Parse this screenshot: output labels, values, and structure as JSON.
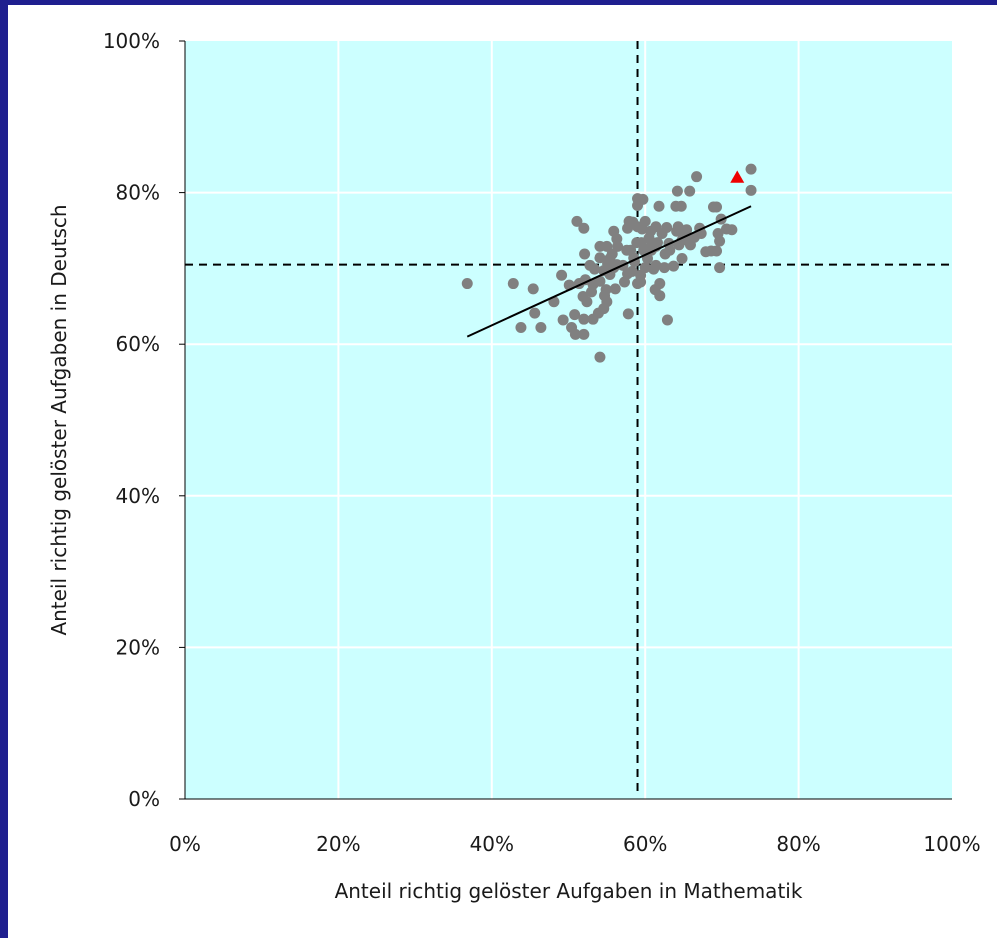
{
  "colors": {
    "plot_bg": "#ccffff",
    "grid": "#ffffff",
    "point": "#808080",
    "highlight": "#ee0000",
    "line": "#000000",
    "frame_border": "#1f1f8f"
  },
  "chart_data": {
    "type": "scatter",
    "title": "",
    "xlabel": "Anteil richtig gelöster Aufgaben in Mathematik",
    "ylabel": "Anteil richtig gelöster Aufgaben in Deutsch",
    "xlim": [
      0,
      100
    ],
    "ylim": [
      0,
      100
    ],
    "x_unit": "%",
    "y_unit": "%",
    "grid": true,
    "x_ticks": [
      "0%",
      "20%",
      "40%",
      "60%",
      "80%",
      "100%"
    ],
    "y_ticks": [
      "0%",
      "20%",
      "40%",
      "60%",
      "80%",
      "100%"
    ],
    "reference_lines": {
      "x": 59,
      "y": 70.5,
      "style": "dashed"
    },
    "trend_line": {
      "x": [
        36.8,
        73.8
      ],
      "y": [
        61,
        78.2
      ]
    },
    "highlighted_point": {
      "x": 72,
      "y": 82,
      "marker": "triangle"
    },
    "series": [
      {
        "points": [
          [
            36.8,
            68
          ],
          [
            42.8,
            68
          ],
          [
            43.8,
            62.2
          ],
          [
            45.4,
            67.3
          ],
          [
            45.6,
            64.1
          ],
          [
            46.4,
            62.2
          ],
          [
            48.1,
            65.6
          ],
          [
            49.1,
            69.1
          ],
          [
            49.3,
            63.2
          ],
          [
            50.1,
            67.8
          ],
          [
            50.4,
            62.2
          ],
          [
            50.9,
            61.3
          ],
          [
            50.8,
            63.9
          ],
          [
            51.1,
            76.2
          ],
          [
            51.4,
            68.0
          ],
          [
            51.9,
            66.3
          ],
          [
            52.0,
            75.3
          ],
          [
            52.0,
            63.3
          ],
          [
            52.0,
            61.3
          ],
          [
            52.2,
            68.5
          ],
          [
            52.1,
            71.9
          ],
          [
            52.4,
            65.6
          ],
          [
            52.8,
            70.4
          ],
          [
            53.0,
            66.9
          ],
          [
            53.2,
            67.9
          ],
          [
            53.4,
            69.9
          ],
          [
            53.2,
            63.3
          ],
          [
            53.9,
            64.1
          ],
          [
            54.1,
            72.9
          ],
          [
            54.1,
            71.4
          ],
          [
            54.1,
            68.3
          ],
          [
            54.1,
            58.3
          ],
          [
            54.6,
            64.7
          ],
          [
            54.7,
            66.4
          ],
          [
            54.9,
            67.2
          ],
          [
            54.6,
            69.7
          ],
          [
            55.0,
            72.9
          ],
          [
            55.0,
            65.6
          ],
          [
            55.1,
            70.6
          ],
          [
            55.4,
            69.2
          ],
          [
            55.4,
            71.3
          ],
          [
            55.7,
            71.9
          ],
          [
            55.9,
            74.9
          ],
          [
            55.9,
            70.1
          ],
          [
            56.1,
            67.3
          ],
          [
            56.3,
            70.5
          ],
          [
            56.3,
            73.9
          ],
          [
            56.4,
            72.9
          ],
          [
            57.1,
            70.4
          ],
          [
            57.6,
            72.4
          ],
          [
            57.3,
            68.2
          ],
          [
            57.7,
            69.3
          ],
          [
            58.1,
            72.4
          ],
          [
            57.7,
            75.3
          ],
          [
            57.9,
            76.2
          ],
          [
            57.8,
            64.0
          ],
          [
            58.4,
            76.1
          ],
          [
            58.5,
            71.4
          ],
          [
            58.3,
            69.6
          ],
          [
            58.6,
            70.9
          ],
          [
            58.9,
            73.4
          ],
          [
            59.0,
            79.2
          ],
          [
            59.0,
            78.3
          ],
          [
            59.0,
            75.5
          ],
          [
            59.0,
            68.0
          ],
          [
            59.4,
            68.2
          ],
          [
            59.4,
            69.1
          ],
          [
            59.6,
            75.2
          ],
          [
            59.5,
            73.4
          ],
          [
            59.7,
            79.1
          ],
          [
            59.8,
            72.4
          ],
          [
            60.0,
            72.6
          ],
          [
            60.0,
            76.2
          ],
          [
            60.0,
            70.1
          ],
          [
            60.3,
            71.3
          ],
          [
            60.7,
            74.9
          ],
          [
            60.5,
            74.0
          ],
          [
            60.8,
            72.4
          ],
          [
            60.8,
            72.9
          ],
          [
            61.1,
            69.9
          ],
          [
            61.3,
            67.2
          ],
          [
            61.4,
            75.5
          ],
          [
            61.4,
            72.9
          ],
          [
            61.4,
            70.4
          ],
          [
            61.6,
            73.4
          ],
          [
            61.8,
            78.2
          ],
          [
            61.9,
            68.0
          ],
          [
            61.9,
            66.4
          ],
          [
            62.2,
            74.6
          ],
          [
            62.5,
            70.1
          ],
          [
            62.6,
            71.9
          ],
          [
            62.8,
            75.4
          ],
          [
            62.9,
            63.2
          ],
          [
            63.1,
            73.3
          ],
          [
            63.2,
            72.4
          ],
          [
            63.7,
            70.3
          ],
          [
            64.0,
            78.2
          ],
          [
            64.1,
            74.9
          ],
          [
            64.2,
            80.2
          ],
          [
            64.3,
            75.5
          ],
          [
            64.4,
            73.1
          ],
          [
            64.7,
            78.2
          ],
          [
            64.8,
            73.7
          ],
          [
            64.8,
            71.3
          ],
          [
            65.1,
            74.6
          ],
          [
            65.4,
            75.1
          ],
          [
            65.6,
            73.8
          ],
          [
            65.8,
            80.2
          ],
          [
            65.9,
            73.1
          ],
          [
            66.4,
            74.1
          ],
          [
            66.7,
            82.1
          ],
          [
            67.1,
            75.3
          ],
          [
            67.3,
            74.6
          ],
          [
            67.9,
            72.2
          ],
          [
            68.6,
            72.3
          ],
          [
            68.9,
            78.1
          ],
          [
            69.3,
            78.1
          ],
          [
            69.3,
            72.3
          ],
          [
            69.5,
            74.6
          ],
          [
            69.7,
            70.1
          ],
          [
            69.7,
            73.6
          ],
          [
            69.9,
            76.5
          ],
          [
            70.6,
            75.2
          ],
          [
            71.3,
            75.1
          ],
          [
            73.8,
            83.1
          ],
          [
            73.8,
            80.3
          ]
        ]
      }
    ]
  }
}
